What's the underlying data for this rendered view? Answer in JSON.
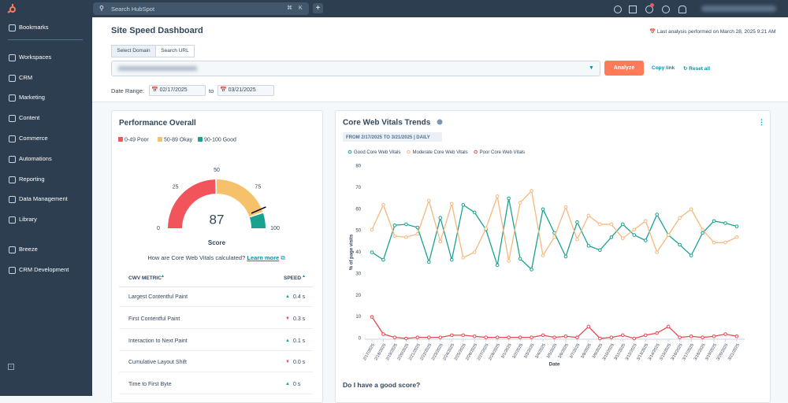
{
  "topbar": {
    "search_placeholder": "Search HubSpot",
    "shortcut": "⌘ K"
  },
  "sidebar": {
    "groups": [
      [
        "Bookmarks"
      ],
      [
        "Workspaces",
        "CRM",
        "Marketing",
        "Content",
        "Commerce",
        "Automations",
        "Reporting",
        "Data Management",
        "Library"
      ],
      [
        "Breeze",
        "CRM Development"
      ]
    ]
  },
  "header": {
    "title": "Site Speed Dashboard",
    "last_analysis": "Last analysis performed on March 28, 2025 9:21 AM",
    "tabs": [
      "Select Domain",
      "Search URL"
    ],
    "analyze": "Analyze",
    "copy_link": "Copy link",
    "reset_all": "Reset all",
    "date_range_label": "Date Range:",
    "date_from": "02/17/2025",
    "date_to_word": "to",
    "date_to": "03/21/2025"
  },
  "performance": {
    "title": "Performance Overall",
    "question": "How are Core Web Vitals calculated?",
    "learn_more": "Learn more",
    "table": {
      "columns": [
        "CWV METRIC",
        "SPEED"
      ],
      "rows": [
        [
          "Largest Contentful Paint",
          "0.4 s",
          "up"
        ],
        [
          "First Contentful Paint",
          "0.3 s",
          "down"
        ],
        [
          "Interaction to Next Paint",
          "0.1 s",
          "up"
        ],
        [
          "Cumulative Layout Shift",
          "0.0 s",
          "down"
        ],
        [
          "Time to First Byte",
          "0 s",
          "up"
        ]
      ]
    }
  },
  "footer_question": "Do I have a good score?",
  "chart_data": [
    {
      "type": "gauge",
      "value": 87,
      "label": "Score",
      "ticks": [
        0,
        25,
        50,
        75,
        100
      ],
      "bands": [
        {
          "name": "0-49 Poor",
          "from": 0,
          "to": 49,
          "color": "#f2545b"
        },
        {
          "name": "50-89 Okay",
          "from": 50,
          "to": 89,
          "color": "#f5c26b"
        },
        {
          "name": "90-100 Good",
          "from": 90,
          "to": 100,
          "color": "#1ba28f"
        }
      ]
    },
    {
      "type": "line",
      "title": "Core Web Vitals Trends",
      "subtitle": "FROM 2/17/2025 TO 3/21/2025 | DAILY",
      "x_label": "Date",
      "y_label": "% of page visits",
      "categories": [
        "2/17/2025",
        "2/18/2025",
        "2/19/2025",
        "2/20/2025",
        "2/21/2025",
        "2/22/2025",
        "2/23/2025",
        "2/24/2025",
        "2/25/2025",
        "2/26/2025",
        "2/27/2025",
        "2/28/2025",
        "3/1/2025",
        "3/2/2025",
        "3/3/2025",
        "3/4/2025",
        "3/5/2025",
        "3/6/2025",
        "3/7/2025",
        "3/8/2025",
        "3/9/2025",
        "3/10/2025",
        "3/11/2025",
        "3/12/2025",
        "3/13/2025",
        "3/14/2025",
        "3/15/2025",
        "3/16/2025",
        "3/17/2025",
        "3/18/2025",
        "3/19/2025",
        "3/20/2025",
        "3/21/2025"
      ],
      "series": [
        {
          "name": "Good Core Web Vitals",
          "color": "#1ba28f",
          "values": [
            40,
            36.5,
            52.5,
            53,
            51.5,
            35.5,
            56,
            36.5,
            62,
            58.5,
            50.5,
            34,
            65,
            37,
            32,
            60,
            49,
            38,
            54,
            43,
            41,
            47,
            53,
            48,
            45.5,
            57.5,
            48,
            43.5,
            38.5,
            49,
            54.5,
            53.5,
            52
          ]
        },
        {
          "name": "Moderate Core Web Vitals",
          "color": "#f5b87e",
          "values": [
            50.5,
            62,
            47.5,
            47,
            48.5,
            64,
            45,
            62.5,
            37.5,
            40,
            51,
            66,
            36,
            63,
            68.5,
            38.5,
            47,
            61,
            46,
            57,
            53,
            53,
            46.5,
            50.5,
            54.5,
            40,
            48,
            56,
            60,
            50.5,
            44.5,
            44.5,
            47
          ]
        },
        {
          "name": "Poor Core Web Vitals",
          "color": "#e8484f",
          "values": [
            10,
            2,
            0.5,
            0,
            0.5,
            0.5,
            0.5,
            1.5,
            1.5,
            1,
            0.5,
            0.5,
            0.5,
            0.5,
            0.5,
            1.5,
            0.5,
            1,
            0.5,
            5.5,
            0,
            0.5,
            1.5,
            0,
            1.5,
            2.5,
            5.5,
            0.5,
            1,
            0.5,
            1,
            2,
            1
          ]
        }
      ],
      "ylim": [
        0,
        80
      ],
      "yticks": [
        0,
        10,
        20,
        30,
        40,
        50,
        60,
        70,
        80
      ],
      "grid": false,
      "legend": "top"
    }
  ]
}
